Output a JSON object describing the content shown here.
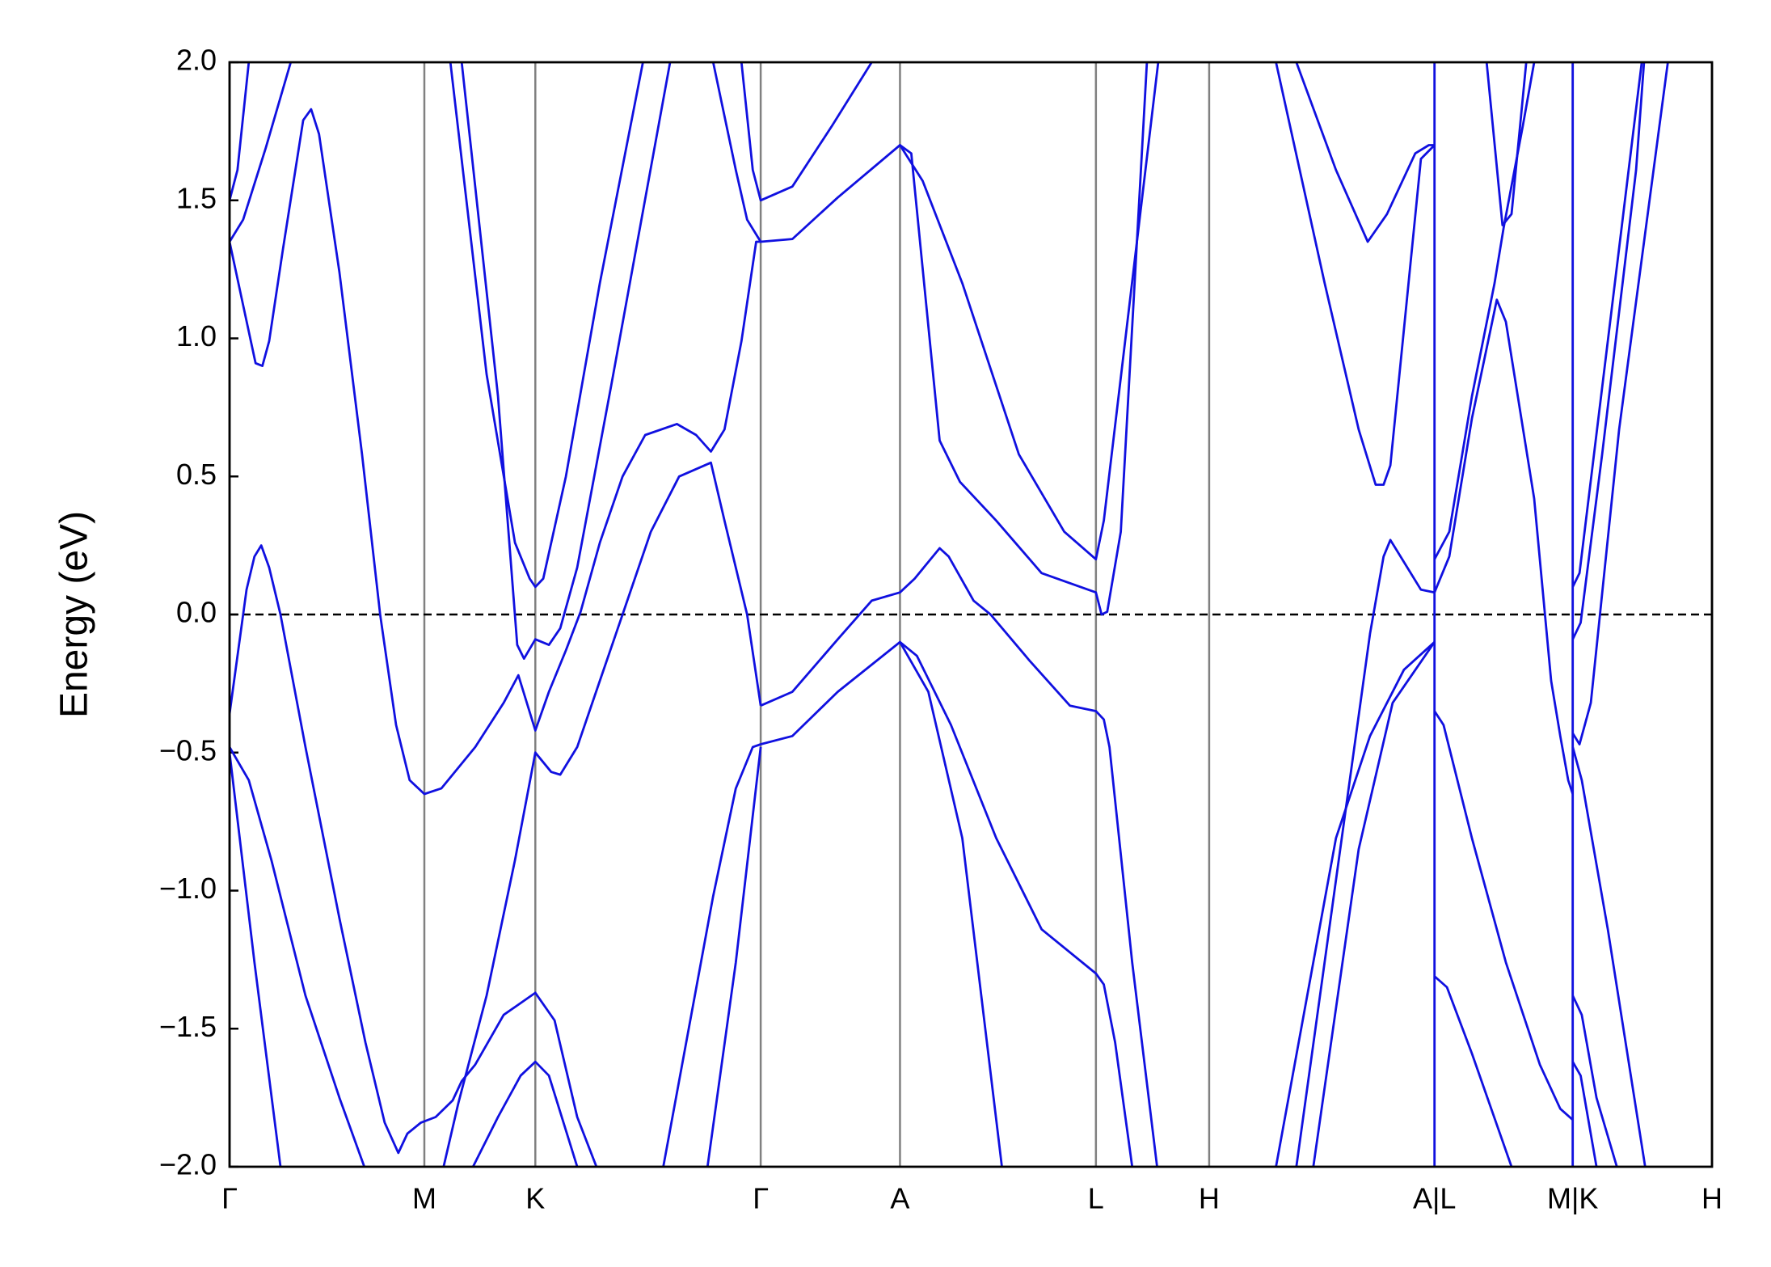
{
  "chart_data": {
    "type": "line",
    "ylabel": "Energy (eV)",
    "color": "#1010e0",
    "fermi_level": 0,
    "xlim": [
      0,
      13.09
    ],
    "ylim": [
      -2,
      2
    ],
    "xticks": [
      {
        "value": 0,
        "label": "Γ"
      },
      {
        "value": 1.72,
        "label": "M"
      },
      {
        "value": 2.7,
        "label": "K"
      },
      {
        "value": 4.69,
        "label": "Γ"
      },
      {
        "value": 5.92,
        "label": "A"
      },
      {
        "value": 7.65,
        "label": "L"
      },
      {
        "value": 8.65,
        "label": "H"
      },
      {
        "value": 10.64,
        "label": "A|L"
      },
      {
        "value": 11.86,
        "label": "M|K"
      },
      {
        "value": 13.09,
        "label": "H"
      }
    ],
    "yticks": [
      {
        "value": -2,
        "label": "−2.0"
      },
      {
        "value": -1.5,
        "label": "−1.5"
      },
      {
        "value": -1,
        "label": "−1.0"
      },
      {
        "value": -0.5,
        "label": "−0.5"
      },
      {
        "value": 0,
        "label": "0.0"
      },
      {
        "value": 0.5,
        "label": "0.5"
      },
      {
        "value": 1,
        "label": "1.0"
      },
      {
        "value": 1.5,
        "label": "1.5"
      },
      {
        "value": 2,
        "label": "2.0"
      }
    ],
    "series": [
      {
        "x": [
          0,
          0.07,
          0.17
        ],
        "values": [
          1.5,
          1.61,
          2.0
        ]
      },
      {
        "x": [
          0,
          0.12,
          0.32,
          0.54
        ],
        "values": [
          1.35,
          1.43,
          1.69,
          2.0
        ]
      },
      {
        "x": [
          0,
          0.12,
          0.23,
          0.29,
          0.35,
          0.47,
          0.65,
          0.72,
          0.79,
          0.97,
          1.17,
          1.33,
          1.47,
          1.59,
          1.72,
          1.87,
          2.17,
          2.42,
          2.55,
          2.64,
          2.7,
          2.82,
          2.97,
          3.1,
          3.27,
          3.47,
          3.67,
          3.95,
          4.12,
          4.25,
          4.37,
          4.52,
          4.65,
          4.69
        ],
        "values": [
          1.35,
          1.12,
          0.91,
          0.9,
          0.99,
          1.32,
          1.79,
          1.83,
          1.74,
          1.24,
          0.58,
          0,
          -0.4,
          -0.6,
          -0.65,
          -0.63,
          -0.48,
          -0.32,
          -0.22,
          -0.34,
          -0.42,
          -0.28,
          -0.13,
          0.01,
          0.26,
          0.5,
          0.65,
          0.69,
          0.65,
          0.59,
          0.67,
          0.99,
          1.35,
          1.35
        ]
      },
      {
        "x": [
          0,
          0.15,
          0.22,
          0.28,
          0.35,
          0.45,
          0.67,
          0.97,
          1.2,
          1.37,
          1.49,
          1.57,
          1.69,
          1.82,
          1.97,
          2.05,
          2.17,
          2.42,
          2.7,
          2.87,
          3.07,
          3.24
        ],
        "values": [
          -0.36,
          0.09,
          0.21,
          0.25,
          0.17,
          0,
          -0.48,
          -1.1,
          -1.55,
          -1.84,
          -1.95,
          -1.88,
          -1.84,
          -1.82,
          -1.76,
          -1.69,
          -1.63,
          -1.45,
          -1.37,
          -1.47,
          -1.82,
          -2.0
        ]
      },
      {
        "x": [
          0,
          0.17,
          0.37,
          0.67,
          0.97,
          1.19
        ],
        "values": [
          -0.48,
          -0.6,
          -0.89,
          -1.38,
          -1.75,
          -2.0
        ]
      },
      {
        "x": [
          0,
          0.22,
          0.45
        ],
        "values": [
          -0.5,
          -1.26,
          -2.0
        ]
      },
      {
        "x": [
          1.89,
          2.02,
          2.27,
          2.52,
          2.7,
          2.84,
          2.92,
          3.07,
          3.27,
          3.47,
          3.72,
          3.97,
          4.25,
          4.37,
          4.57,
          4.65,
          4.69
        ],
        "values": [
          -2.0,
          -1.77,
          -1.38,
          -0.89,
          -0.5,
          -0.57,
          -0.58,
          -0.48,
          -0.24,
          0,
          0.3,
          0.5,
          0.55,
          0.34,
          0,
          -0.22,
          -0.33
        ]
      },
      {
        "x": [
          2.15,
          2.37,
          2.57,
          2.7,
          2.82,
          3.07
        ],
        "values": [
          -2.0,
          -1.82,
          -1.67,
          -1.62,
          -1.67,
          -2.0
        ]
      },
      {
        "x": [
          1.95,
          2.27,
          2.52,
          2.65,
          2.7,
          2.77,
          2.97,
          3.27,
          3.65
        ],
        "values": [
          2.0,
          0.87,
          0.26,
          0.13,
          0.1,
          0.13,
          0.5,
          1.2,
          2.0
        ]
      },
      {
        "x": [
          2.05,
          2.37,
          2.54,
          2.6,
          2.7,
          2.82,
          2.92,
          3.07,
          3.37,
          3.89
        ],
        "values": [
          2.0,
          0.79,
          -0.11,
          -0.16,
          -0.09,
          -0.11,
          -0.05,
          0.17,
          0.83,
          2.0
        ]
      },
      {
        "x": [
          4.27,
          4.47,
          4.57,
          4.69,
          4.97,
          5.37,
          5.92,
          6.02,
          6.27,
          6.45,
          6.77,
          7.17,
          7.65,
          7.7,
          7.75,
          7.87,
          8.1
        ],
        "values": [
          2.0,
          1.61,
          1.43,
          1.35,
          1.36,
          1.51,
          1.7,
          1.67,
          0.63,
          0.48,
          0.34,
          0.15,
          0.08,
          0.0,
          0.01,
          0.3,
          2.0
        ]
      },
      {
        "x": [
          4.52,
          4.62,
          4.69,
          4.97,
          5.32,
          5.67
        ],
        "values": [
          2.0,
          1.61,
          1.5,
          1.55,
          1.77,
          2.0
        ]
      },
      {
        "x": [
          5.92,
          6.12,
          6.47,
          6.97,
          7.37,
          7.65,
          7.72,
          8.2
        ],
        "values": [
          1.7,
          1.57,
          1.2,
          0.58,
          0.3,
          0.2,
          0.34,
          2.0
        ]
      },
      {
        "x": [
          4.69,
          4.97,
          5.37,
          5.67,
          5.92,
          6.05,
          6.27,
          6.35,
          6.57,
          6.72,
          7.07,
          7.42,
          7.65,
          7.72,
          7.77,
          7.97,
          8.19
        ],
        "values": [
          -0.33,
          -0.28,
          -0.09,
          0.05,
          0.08,
          0.13,
          0.24,
          0.21,
          0.05,
          0,
          -0.17,
          -0.33,
          -0.35,
          -0.38,
          -0.48,
          -1.26,
          -2.0
        ]
      },
      {
        "x": [
          4.69,
          4.97,
          5.37,
          5.92,
          6.07,
          6.37,
          6.77,
          7.17,
          7.65,
          7.72,
          7.82,
          7.97
        ],
        "values": [
          -0.47,
          -0.44,
          -0.28,
          -0.1,
          -0.15,
          -0.4,
          -0.81,
          -1.14,
          -1.3,
          -1.34,
          -1.55,
          -2.0
        ]
      },
      {
        "x": [
          3.83,
          4.27,
          4.47,
          4.62,
          4.69
        ],
        "values": [
          -2.0,
          -1.02,
          -0.63,
          -0.48,
          -0.47
        ]
      },
      {
        "x": [
          4.22,
          4.47,
          4.69
        ],
        "values": [
          -2.0,
          -1.26,
          -0.48
        ]
      },
      {
        "x": [
          5.92,
          6.17,
          6.47,
          6.82
        ],
        "values": [
          -0.1,
          -0.28,
          -0.81,
          -2.0
        ]
      },
      {
        "x": [
          9.42,
          9.77,
          10.05,
          10.22,
          10.47,
          10.59,
          10.64
        ],
        "values": [
          2.0,
          1.61,
          1.35,
          1.45,
          1.67,
          1.7,
          1.7
        ]
      },
      {
        "x": [
          9.24,
          9.67,
          9.97,
          10.12,
          10.19,
          10.25,
          10.52,
          10.64
        ],
        "values": [
          2.0,
          1.2,
          0.67,
          0.47,
          0.47,
          0.54,
          1.65,
          1.7
        ]
      },
      {
        "x": [
          9.42,
          10.07,
          10.19,
          10.25,
          10.37,
          10.52,
          10.64
        ],
        "values": [
          -2.0,
          -0.07,
          0.21,
          0.27,
          0.19,
          0.09,
          0.08
        ]
      },
      {
        "x": [
          9.24,
          9.77,
          10.07,
          10.37,
          10.64
        ],
        "values": [
          -2.0,
          -0.81,
          -0.44,
          -0.2,
          -0.1
        ]
      },
      {
        "x": [
          9.57,
          9.97,
          10.27,
          10.64
        ],
        "values": [
          -2.0,
          -0.85,
          -0.32,
          -0.1
        ]
      },
      {
        "x": [
          10.64,
          10.77,
          10.97,
          11.17,
          11.25,
          11.42,
          11.52
        ],
        "values": [
          0.2,
          0.3,
          0.79,
          1.2,
          1.4,
          1.77,
          2.0
        ]
      },
      {
        "x": [
          10.64,
          10.77,
          10.97,
          11.19,
          11.27,
          11.52,
          11.67,
          11.75,
          11.82,
          11.86
        ],
        "values": [
          0.08,
          0.21,
          0.71,
          1.14,
          1.06,
          0.42,
          -0.24,
          -0.44,
          -0.6,
          -0.65
        ]
      },
      {
        "x": [
          11.1,
          11.24,
          11.32,
          11.45
        ],
        "values": [
          2.0,
          1.41,
          1.45,
          2.0
        ]
      },
      {
        "x": [
          10.64,
          10.72,
          10.97,
          11.27,
          11.57,
          11.75,
          11.86
        ],
        "values": [
          -0.35,
          -0.4,
          -0.81,
          -1.26,
          -1.63,
          -1.79,
          -1.83
        ]
      },
      {
        "x": [
          10.64,
          10.75,
          10.97,
          11.32
        ],
        "values": [
          -1.31,
          -1.35,
          -1.59,
          -2.0
        ]
      },
      {
        "x": [
          11.86,
          11.92,
          12.17,
          12.47
        ],
        "values": [
          0.1,
          0.15,
          0.99,
          2.0
        ]
      },
      {
        "x": [
          11.86,
          11.93,
          12.12,
          12.42,
          12.49
        ],
        "values": [
          -0.09,
          -0.03,
          0.58,
          1.61,
          2.0
        ]
      },
      {
        "x": [
          11.86,
          11.92,
          12.02,
          12.27,
          12.7
        ],
        "values": [
          -0.43,
          -0.47,
          -0.32,
          0.67,
          2.0
        ]
      },
      {
        "x": [
          11.86,
          11.94,
          12.17,
          12.5
        ],
        "values": [
          -0.48,
          -0.6,
          -1.14,
          -2.0
        ]
      },
      {
        "x": [
          11.86,
          11.94,
          12.07,
          12.25
        ],
        "values": [
          -1.38,
          -1.45,
          -1.75,
          -2.0
        ]
      },
      {
        "x": [
          11.86,
          11.93,
          12.07
        ],
        "values": [
          -1.62,
          -1.67,
          -2.0
        ]
      },
      {
        "x": [
          10.64,
          10.64
        ],
        "values": [
          -2.0,
          2.0
        ]
      },
      {
        "x": [
          11.86,
          11.86
        ],
        "values": [
          -2.0,
          2.0
        ]
      }
    ]
  }
}
